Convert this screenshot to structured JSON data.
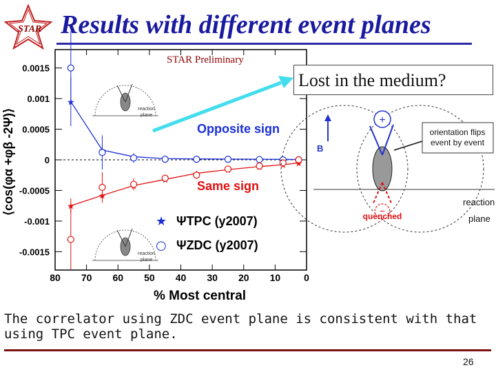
{
  "slide": {
    "title": "Results with different event planes",
    "logo_text": "STAR",
    "preliminary": "STAR Preliminary",
    "callout": "Lost in the medium?",
    "caption": "The correlator using ZDC event plane is consistent with that using TPC event plane.",
    "page_number": "26"
  },
  "colors": {
    "title": "#1a1aa0",
    "opposite": "#1a2fd6",
    "same": "#e01010",
    "arrow": "#44ddee",
    "rule": "#7a1010"
  },
  "chart_data": [
    {
      "type": "scatter",
      "ylabel": "⟨cos(φα +φβ -2Ψ)⟩",
      "xlabel": "% Most central",
      "xlim": [
        80,
        0
      ],
      "ylim": [
        -0.0018,
        0.0018
      ],
      "x_ticks": [
        "80",
        "70",
        "60",
        "50",
        "40",
        "30",
        "20",
        "10",
        "0"
      ],
      "y_ticks": [
        "0.0015",
        "0.001",
        "0.0005",
        "0",
        "-0.0005",
        "-0.001",
        "-0.0015"
      ],
      "y_tick_values": [
        0.0015,
        0.001,
        0.0005,
        0,
        -0.0005,
        -0.001,
        -0.0015
      ],
      "annotations": {
        "opposite": "Opposite sign",
        "same": "Same sign"
      },
      "legend": [
        {
          "symbol": "★",
          "label": "ΨTPC (y2007)"
        },
        {
          "symbol": "○",
          "label": "ΨZDC (y2007)"
        }
      ],
      "series": [
        {
          "name": "ΨTPC (y2007)",
          "charge": "opposite",
          "marker": "star",
          "x": [
            75,
            65,
            55,
            45,
            35,
            25,
            15,
            7.5,
            2.5
          ],
          "y": [
            0.00095,
            0.00016,
            5e-05,
            2e-05,
            1.5e-05,
            1.2e-05,
            1e-05,
            8e-06,
            5e-06
          ],
          "err": [
            0.0004,
            0.0001,
            4e-05,
            2e-05,
            1.5e-05,
            1e-05,
            1e-05,
            1e-05,
            1e-05
          ]
        },
        {
          "name": "ΨZDC (y2007)",
          "charge": "opposite",
          "marker": "circle",
          "x": [
            75,
            65,
            55,
            45,
            35,
            25,
            15,
            7.5,
            2.5
          ],
          "y": [
            0.0015,
            0.00012,
            3e-05,
            1e-05,
            1e-05,
            1e-05,
            5e-06,
            0.0,
            0.0
          ],
          "err": [
            0.0006,
            0.00028,
            8e-05,
            4e-05,
            3e-05,
            3e-05,
            3e-05,
            4e-05,
            5e-05
          ]
        },
        {
          "name": "ΨTPC (y2007)",
          "charge": "same",
          "marker": "star",
          "x": [
            75,
            65,
            55,
            45,
            35,
            25,
            15,
            7.5,
            2.5
          ],
          "y": [
            -0.00075,
            -0.00058,
            -0.00042,
            -0.00032,
            -0.00022,
            -0.00016,
            -0.00011,
            -8e-05,
            -5e-05
          ],
          "err": [
            0.00012,
            5e-05,
            3e-05,
            2e-05,
            1.5e-05,
            1e-05,
            1e-05,
            1e-05,
            1e-05
          ]
        },
        {
          "name": "ΨZDC (y2007)",
          "charge": "same",
          "marker": "circle",
          "x": [
            75,
            65,
            55,
            45,
            35,
            25,
            15,
            7.5,
            2.5
          ],
          "y": [
            -0.0013,
            -0.00045,
            -0.0004,
            -0.0003,
            -0.00025,
            -0.00015,
            -0.0001,
            -5e-05,
            0.0
          ],
          "err": [
            0.0005,
            0.00025,
            0.0001,
            6e-05,
            4e-05,
            3e-05,
            3e-05,
            4e-05,
            5e-05
          ]
        }
      ]
    },
    {
      "type": "diagram",
      "labels": {
        "plus": "+",
        "b": "B",
        "flip": "orientation flips\nevent by event",
        "reaction": "reaction",
        "plane": "plane",
        "quenched": "quenched",
        "minus": "−",
        "inset_reaction": "reaction",
        "inset_plane": "plane"
      }
    }
  ]
}
